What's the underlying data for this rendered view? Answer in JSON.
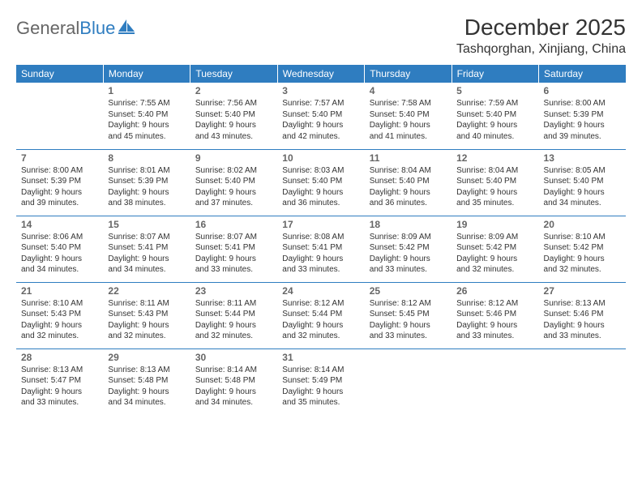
{
  "brand": {
    "part1": "General",
    "part2": "Blue"
  },
  "title": "December 2025",
  "location": "Tashqorghan, Xinjiang, China",
  "colors": {
    "header_bg": "#2f7dc0",
    "header_text": "#ffffff",
    "border": "#2f7dc0",
    "body_text": "#333333",
    "daynum": "#666666"
  },
  "day_headers": [
    "Sunday",
    "Monday",
    "Tuesday",
    "Wednesday",
    "Thursday",
    "Friday",
    "Saturday"
  ],
  "weeks": [
    [
      null,
      {
        "n": "1",
        "sr": "7:55 AM",
        "ss": "5:40 PM",
        "dl1": "Daylight: 9 hours",
        "dl2": "and 45 minutes."
      },
      {
        "n": "2",
        "sr": "7:56 AM",
        "ss": "5:40 PM",
        "dl1": "Daylight: 9 hours",
        "dl2": "and 43 minutes."
      },
      {
        "n": "3",
        "sr": "7:57 AM",
        "ss": "5:40 PM",
        "dl1": "Daylight: 9 hours",
        "dl2": "and 42 minutes."
      },
      {
        "n": "4",
        "sr": "7:58 AM",
        "ss": "5:40 PM",
        "dl1": "Daylight: 9 hours",
        "dl2": "and 41 minutes."
      },
      {
        "n": "5",
        "sr": "7:59 AM",
        "ss": "5:40 PM",
        "dl1": "Daylight: 9 hours",
        "dl2": "and 40 minutes."
      },
      {
        "n": "6",
        "sr": "8:00 AM",
        "ss": "5:39 PM",
        "dl1": "Daylight: 9 hours",
        "dl2": "and 39 minutes."
      }
    ],
    [
      {
        "n": "7",
        "sr": "8:00 AM",
        "ss": "5:39 PM",
        "dl1": "Daylight: 9 hours",
        "dl2": "and 39 minutes."
      },
      {
        "n": "8",
        "sr": "8:01 AM",
        "ss": "5:39 PM",
        "dl1": "Daylight: 9 hours",
        "dl2": "and 38 minutes."
      },
      {
        "n": "9",
        "sr": "8:02 AM",
        "ss": "5:40 PM",
        "dl1": "Daylight: 9 hours",
        "dl2": "and 37 minutes."
      },
      {
        "n": "10",
        "sr": "8:03 AM",
        "ss": "5:40 PM",
        "dl1": "Daylight: 9 hours",
        "dl2": "and 36 minutes."
      },
      {
        "n": "11",
        "sr": "8:04 AM",
        "ss": "5:40 PM",
        "dl1": "Daylight: 9 hours",
        "dl2": "and 36 minutes."
      },
      {
        "n": "12",
        "sr": "8:04 AM",
        "ss": "5:40 PM",
        "dl1": "Daylight: 9 hours",
        "dl2": "and 35 minutes."
      },
      {
        "n": "13",
        "sr": "8:05 AM",
        "ss": "5:40 PM",
        "dl1": "Daylight: 9 hours",
        "dl2": "and 34 minutes."
      }
    ],
    [
      {
        "n": "14",
        "sr": "8:06 AM",
        "ss": "5:40 PM",
        "dl1": "Daylight: 9 hours",
        "dl2": "and 34 minutes."
      },
      {
        "n": "15",
        "sr": "8:07 AM",
        "ss": "5:41 PM",
        "dl1": "Daylight: 9 hours",
        "dl2": "and 34 minutes."
      },
      {
        "n": "16",
        "sr": "8:07 AM",
        "ss": "5:41 PM",
        "dl1": "Daylight: 9 hours",
        "dl2": "and 33 minutes."
      },
      {
        "n": "17",
        "sr": "8:08 AM",
        "ss": "5:41 PM",
        "dl1": "Daylight: 9 hours",
        "dl2": "and 33 minutes."
      },
      {
        "n": "18",
        "sr": "8:09 AM",
        "ss": "5:42 PM",
        "dl1": "Daylight: 9 hours",
        "dl2": "and 33 minutes."
      },
      {
        "n": "19",
        "sr": "8:09 AM",
        "ss": "5:42 PM",
        "dl1": "Daylight: 9 hours",
        "dl2": "and 32 minutes."
      },
      {
        "n": "20",
        "sr": "8:10 AM",
        "ss": "5:42 PM",
        "dl1": "Daylight: 9 hours",
        "dl2": "and 32 minutes."
      }
    ],
    [
      {
        "n": "21",
        "sr": "8:10 AM",
        "ss": "5:43 PM",
        "dl1": "Daylight: 9 hours",
        "dl2": "and 32 minutes."
      },
      {
        "n": "22",
        "sr": "8:11 AM",
        "ss": "5:43 PM",
        "dl1": "Daylight: 9 hours",
        "dl2": "and 32 minutes."
      },
      {
        "n": "23",
        "sr": "8:11 AM",
        "ss": "5:44 PM",
        "dl1": "Daylight: 9 hours",
        "dl2": "and 32 minutes."
      },
      {
        "n": "24",
        "sr": "8:12 AM",
        "ss": "5:44 PM",
        "dl1": "Daylight: 9 hours",
        "dl2": "and 32 minutes."
      },
      {
        "n": "25",
        "sr": "8:12 AM",
        "ss": "5:45 PM",
        "dl1": "Daylight: 9 hours",
        "dl2": "and 33 minutes."
      },
      {
        "n": "26",
        "sr": "8:12 AM",
        "ss": "5:46 PM",
        "dl1": "Daylight: 9 hours",
        "dl2": "and 33 minutes."
      },
      {
        "n": "27",
        "sr": "8:13 AM",
        "ss": "5:46 PM",
        "dl1": "Daylight: 9 hours",
        "dl2": "and 33 minutes."
      }
    ],
    [
      {
        "n": "28",
        "sr": "8:13 AM",
        "ss": "5:47 PM",
        "dl1": "Daylight: 9 hours",
        "dl2": "and 33 minutes."
      },
      {
        "n": "29",
        "sr": "8:13 AM",
        "ss": "5:48 PM",
        "dl1": "Daylight: 9 hours",
        "dl2": "and 34 minutes."
      },
      {
        "n": "30",
        "sr": "8:14 AM",
        "ss": "5:48 PM",
        "dl1": "Daylight: 9 hours",
        "dl2": "and 34 minutes."
      },
      {
        "n": "31",
        "sr": "8:14 AM",
        "ss": "5:49 PM",
        "dl1": "Daylight: 9 hours",
        "dl2": "and 35 minutes."
      },
      null,
      null,
      null
    ]
  ]
}
